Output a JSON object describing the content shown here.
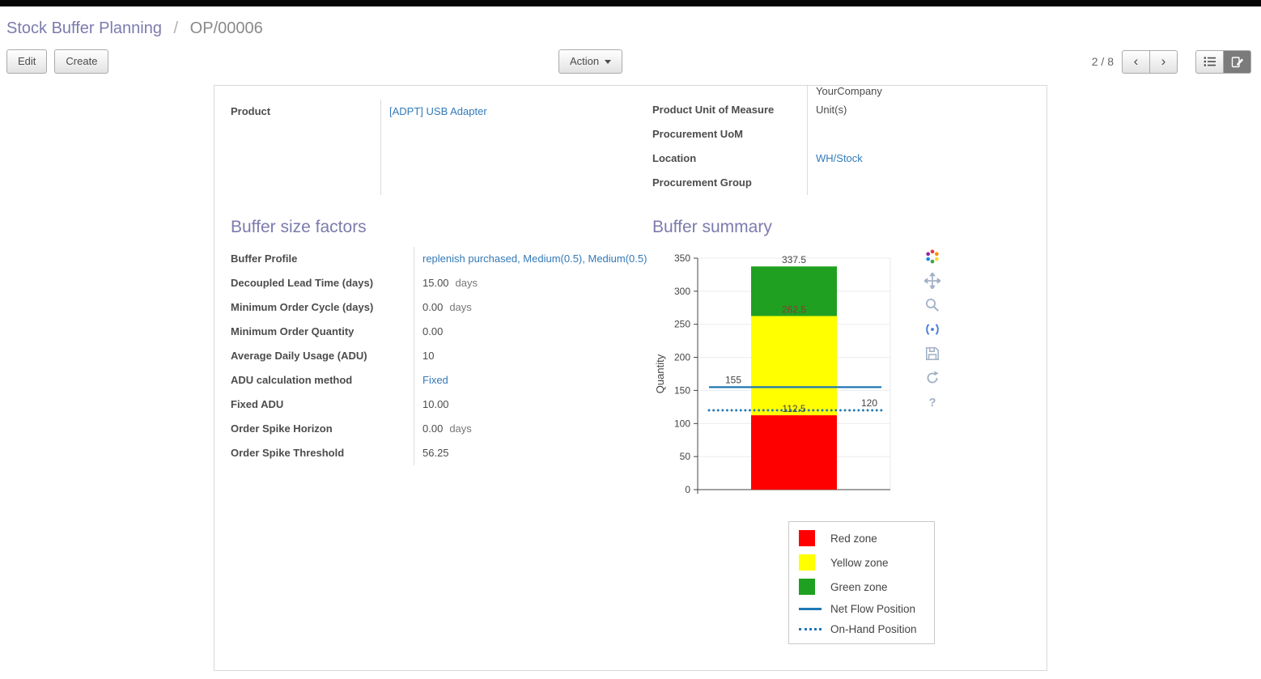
{
  "breadcrumb": {
    "parent": "Stock Buffer Planning",
    "separator": "/",
    "current": "OP/00006"
  },
  "toolbar": {
    "edit": "Edit",
    "create": "Create",
    "action": "Action",
    "pager": "2 / 8"
  },
  "form": {
    "top_right_clipped_value": "YourCompany",
    "product": {
      "label": "Product",
      "value": "[ADPT] USB Adapter"
    },
    "right_rows": [
      {
        "label": "Product Unit of Measure",
        "value": "Unit(s)"
      },
      {
        "label": "Procurement UoM",
        "value": ""
      },
      {
        "label": "Location",
        "value": "WH/Stock"
      },
      {
        "label": "Procurement Group",
        "value": ""
      }
    ],
    "factors_heading": "Buffer size factors",
    "factors_rows": [
      {
        "label": "Buffer Profile",
        "value": "replenish purchased, Medium(0.5), Medium(0.5)",
        "suffix": ""
      },
      {
        "label": "Decoupled Lead Time (days)",
        "value": "15.00",
        "suffix": "days"
      },
      {
        "label": "Minimum Order Cycle (days)",
        "value": "0.00",
        "suffix": "days"
      },
      {
        "label": "Minimum Order Quantity",
        "value": "0.00",
        "suffix": ""
      },
      {
        "label": "Average Daily Usage (ADU)",
        "value": "10",
        "suffix": ""
      },
      {
        "label": "ADU calculation method",
        "value": "Fixed",
        "suffix": ""
      },
      {
        "label": "Fixed ADU",
        "value": "10.00",
        "suffix": ""
      },
      {
        "label": "Order Spike Horizon",
        "value": "0.00",
        "suffix": "days"
      },
      {
        "label": "Order Spike Threshold",
        "value": "56.25",
        "suffix": ""
      }
    ],
    "summary_heading": "Buffer summary"
  },
  "chart_data": {
    "type": "bar",
    "title": "",
    "xlabel": "",
    "ylabel": "Quantity",
    "ylim": [
      0,
      350
    ],
    "yticks": [
      0,
      50,
      100,
      150,
      200,
      250,
      300,
      350
    ],
    "zones": [
      {
        "name": "Red zone",
        "from": 0,
        "to": 112.5,
        "color": "#ff0000",
        "top_label": "112.5",
        "label_color": "#444444"
      },
      {
        "name": "Yellow zone",
        "from": 112.5,
        "to": 262.5,
        "color": "#ffff00",
        "top_label": "262.5",
        "label_color": "#8b3a3a"
      },
      {
        "name": "Green zone",
        "from": 262.5,
        "to": 337.5,
        "color": "#20a020",
        "top_label": "337.5",
        "label_color": "#444444"
      }
    ],
    "lines": [
      {
        "name": "Net Flow Position",
        "value": 155,
        "style": "solid",
        "color": "#1f77b4",
        "label": "155",
        "label_side": "left"
      },
      {
        "name": "On-Hand Position",
        "value": 120,
        "style": "dotted",
        "color": "#1f77b4",
        "label": "120",
        "label_side": "right"
      }
    ],
    "legend_position": "bottom-right",
    "grid": true,
    "toolbar_icons": [
      "plotly-logo",
      "pan",
      "zoom",
      "autoscale",
      "download",
      "reset-axes",
      "help"
    ]
  },
  "legend": [
    {
      "label": "Red zone",
      "swatch": "box",
      "color": "#ff0000"
    },
    {
      "label": "Yellow zone",
      "swatch": "box",
      "color": "#ffff00"
    },
    {
      "label": "Green zone",
      "swatch": "box",
      "color": "#20a020"
    },
    {
      "label": "Net Flow Position",
      "swatch": "line",
      "color": "#1f77b4"
    },
    {
      "label": "On-Hand Position",
      "swatch": "dotted",
      "color": "#1f77b4"
    }
  ],
  "colors": {
    "accent": "#7c7bad",
    "link": "#337ab7",
    "flow_line": "#1f77b4"
  }
}
